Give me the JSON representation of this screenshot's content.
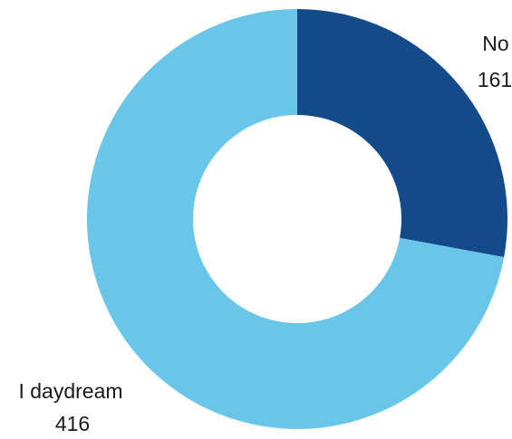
{
  "chart_data": {
    "type": "pie",
    "subtype": "donut",
    "title": "",
    "slices": [
      {
        "label": "No",
        "value": 161,
        "color": "#134a8a"
      },
      {
        "label": "I daydream",
        "value": 416,
        "color": "#6ac6e8"
      }
    ],
    "legend": "none"
  }
}
